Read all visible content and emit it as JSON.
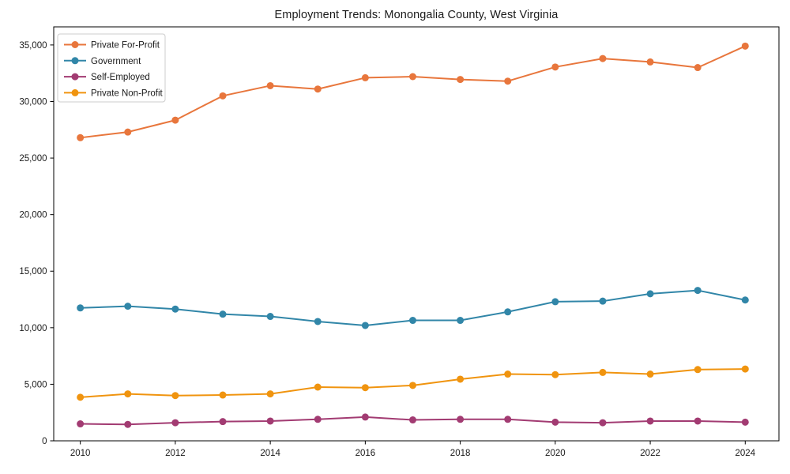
{
  "figure": {
    "background_color": "#ffffff",
    "frame_color": "#000000"
  },
  "chart_data": {
    "type": "line",
    "title": "Employment Trends: Monongalia County, West Virginia",
    "xlabel": "",
    "ylabel": "",
    "x": [
      2010,
      2011,
      2012,
      2013,
      2014,
      2015,
      2016,
      2017,
      2018,
      2019,
      2020,
      2021,
      2022,
      2023,
      2024
    ],
    "x_tick_labels": [
      "2010",
      "2012",
      "2014",
      "2016",
      "2018",
      "2020",
      "2022",
      "2024"
    ],
    "x_tick_years": [
      2010,
      2012,
      2014,
      2016,
      2018,
      2020,
      2022,
      2024
    ],
    "y_ticks": [
      0,
      5000,
      10000,
      15000,
      20000,
      25000,
      30000,
      35000
    ],
    "y_tick_labels": [
      "0",
      "5,000",
      "10,000",
      "15,000",
      "20,000",
      "25,000",
      "30,000",
      "35,000"
    ],
    "xlim": [
      2009.44,
      2024.71
    ],
    "ylim": [
      0,
      36600
    ],
    "grid": false,
    "legend_position": "upper-left",
    "series": [
      {
        "name": "Private For-Profit",
        "color": "#E8763C",
        "values": [
          26800,
          27300,
          28350,
          30500,
          31400,
          31100,
          32100,
          32200,
          31950,
          31800,
          33050,
          33800,
          33500,
          33000,
          34900
        ]
      },
      {
        "name": "Government",
        "color": "#3186A8",
        "values": [
          11750,
          11900,
          11650,
          11200,
          11000,
          10550,
          10200,
          10650,
          10650,
          11400,
          12300,
          12350,
          13000,
          13300,
          12450
        ]
      },
      {
        "name": "Self-Employed",
        "color": "#A23B72",
        "values": [
          1500,
          1450,
          1600,
          1700,
          1750,
          1900,
          2100,
          1850,
          1900,
          1900,
          1650,
          1600,
          1750,
          1750,
          1650
        ]
      },
      {
        "name": "Private Non-Profit",
        "color": "#F0940F",
        "values": [
          3850,
          4150,
          4000,
          4050,
          4150,
          4750,
          4700,
          4900,
          5450,
          5900,
          5850,
          6050,
          5900,
          6300,
          6350
        ]
      }
    ]
  }
}
